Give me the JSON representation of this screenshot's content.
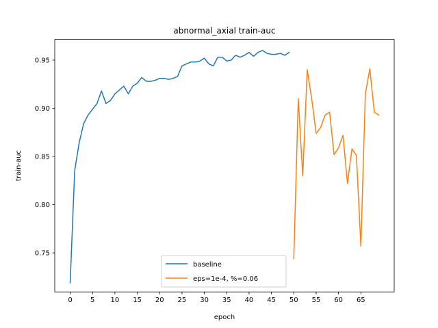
{
  "chart_data": {
    "type": "line",
    "title": "abnormal_axial train-auc",
    "xlabel": "epoch",
    "ylabel": "train-auc",
    "xlim": [
      -3.45,
      72.45
    ],
    "ylim": [
      0.7095,
      0.9715
    ],
    "xticks": [
      0,
      5,
      10,
      15,
      20,
      25,
      30,
      35,
      40,
      45,
      50,
      55,
      60,
      65
    ],
    "yticks": [
      0.75,
      0.8,
      0.85,
      0.9,
      0.95
    ],
    "ytick_labels": [
      "0.75",
      "0.80",
      "0.85",
      "0.90",
      "0.95"
    ],
    "grid": false,
    "legend_position": "lower center",
    "series": [
      {
        "name": "baseline",
        "color": "#1f77b4",
        "x": [
          0,
          1,
          2,
          3,
          4,
          5,
          6,
          7,
          8,
          9,
          10,
          11,
          12,
          13,
          14,
          15,
          16,
          17,
          18,
          19,
          20,
          21,
          22,
          23,
          24,
          25,
          26,
          27,
          28,
          29,
          30,
          31,
          32,
          33,
          34,
          35,
          36,
          37,
          38,
          39,
          40,
          41,
          42,
          43,
          44,
          45,
          46,
          47,
          48,
          49
        ],
        "y": [
          0.719,
          0.835,
          0.864,
          0.884,
          0.893,
          0.899,
          0.905,
          0.918,
          0.905,
          0.908,
          0.915,
          0.919,
          0.923,
          0.915,
          0.923,
          0.926,
          0.932,
          0.928,
          0.928,
          0.929,
          0.931,
          0.931,
          0.93,
          0.931,
          0.933,
          0.944,
          0.946,
          0.948,
          0.948,
          0.949,
          0.952,
          0.946,
          0.944,
          0.953,
          0.953,
          0.949,
          0.95,
          0.955,
          0.953,
          0.955,
          0.958,
          0.954,
          0.958,
          0.96,
          0.957,
          0.956,
          0.956,
          0.957,
          0.955,
          0.958
        ]
      },
      {
        "name": "eps=1e-4, %=0.06",
        "color": "#ff7f0e",
        "x": [
          50,
          51,
          52,
          53,
          54,
          55,
          56,
          57,
          58,
          59,
          60,
          61,
          62,
          63,
          64,
          65,
          66,
          67,
          68,
          69
        ],
        "y": [
          0.744,
          0.91,
          0.83,
          0.94,
          0.91,
          0.874,
          0.88,
          0.893,
          0.896,
          0.852,
          0.859,
          0.872,
          0.822,
          0.858,
          0.851,
          0.757,
          0.915,
          0.941,
          0.896,
          0.893
        ]
      }
    ]
  }
}
